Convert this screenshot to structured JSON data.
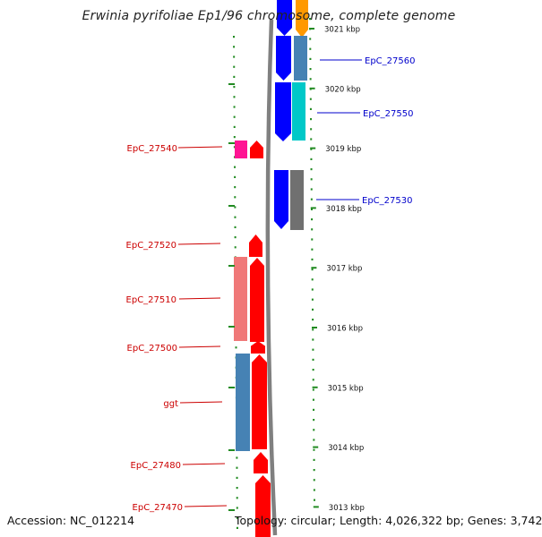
{
  "title": "Erwinia pyrifoliae Ep1/96 chromosome, complete genome",
  "footer": {
    "accession_label": "Accession:",
    "accession": "NC_012214",
    "topology_label": "Topology:",
    "topology": "circular",
    "length_label": "Length:",
    "length": "4,026,322 bp",
    "genes_label": "Genes:",
    "genes": "3,742"
  },
  "colors": {
    "axis": "#808080",
    "dotted_track": "#228b22",
    "red_label": "#cc0000",
    "blue_label": "#0000cc",
    "gene_red": "#ff0000",
    "gene_pink": "#f07878",
    "gene_steel": "#4682b4",
    "gene_magenta": "#ff1493",
    "gene_blue": "#0000ff",
    "gene_cyan": "#00c8c8",
    "gene_gray": "#707070",
    "gene_orange": "#ff9900"
  },
  "ticks": [
    {
      "kbp": 3021,
      "label": "3021 kbp"
    },
    {
      "kbp": 3020,
      "label": "3020 kbp"
    },
    {
      "kbp": 3019,
      "label": "3019 kbp"
    },
    {
      "kbp": 3018,
      "label": "3018 kbp"
    },
    {
      "kbp": 3017,
      "label": "3017 kbp"
    },
    {
      "kbp": 3016,
      "label": "3016 kbp"
    },
    {
      "kbp": 3015,
      "label": "3015 kbp"
    },
    {
      "kbp": 3014,
      "label": "3014 kbp"
    },
    {
      "kbp": 3013,
      "label": "3013 kbp"
    }
  ],
  "gene_labels": [
    {
      "name": "EpC_27560",
      "side": "right"
    },
    {
      "name": "EpC_27550",
      "side": "right"
    },
    {
      "name": "EpC_27540",
      "side": "left"
    },
    {
      "name": "EpC_27530",
      "side": "right"
    },
    {
      "name": "EpC_27520",
      "side": "left"
    },
    {
      "name": "EpC_27510",
      "side": "left"
    },
    {
      "name": "EpC_27500",
      "side": "left"
    },
    {
      "name": "ggt",
      "side": "left"
    },
    {
      "name": "EpC_27480",
      "side": "left"
    },
    {
      "name": "EpC_27470",
      "side": "left"
    }
  ]
}
